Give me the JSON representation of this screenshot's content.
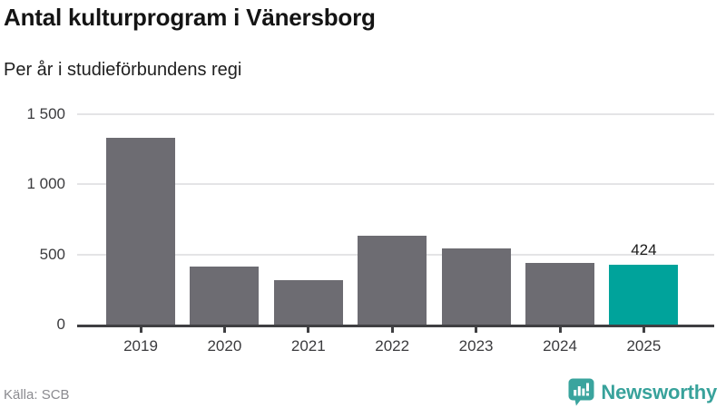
{
  "header": {
    "title": "Antal kulturprogram i Vänersborg",
    "subtitle": "Per år i studieförbundens regi"
  },
  "chart_data": {
    "type": "bar",
    "categories": [
      "2019",
      "2020",
      "2021",
      "2022",
      "2023",
      "2024",
      "2025"
    ],
    "values": [
      1330,
      415,
      320,
      635,
      545,
      440,
      424
    ],
    "title": "Antal kulturprogram i Vänersborg",
    "subtitle": "Per år i studieförbundens regi",
    "xlabel": "",
    "ylabel": "",
    "ylim": [
      0,
      1500
    ],
    "yticks": [
      0,
      500,
      1000,
      1500
    ],
    "ytick_labels": [
      "0",
      "500",
      "1 000",
      "1 500"
    ],
    "grid": true,
    "bar_color": "#6d6c72",
    "highlight_index": 6,
    "highlight_color": "#00a39b",
    "annotation": {
      "index": 6,
      "text": "424"
    }
  },
  "footer": {
    "source": "Källa: SCB",
    "brand": "Newsworthy",
    "brand_color": "#38a29b"
  }
}
